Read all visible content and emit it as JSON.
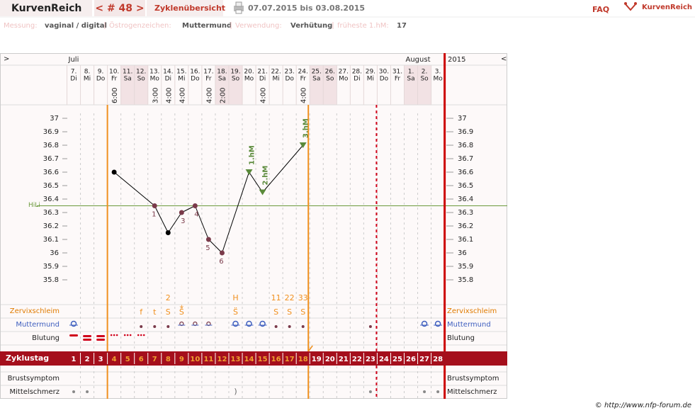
{
  "header": {
    "brand": "KurvenReich",
    "cycle_nav": "< # 48 >",
    "overview": "Zyklenübersicht",
    "date_range": "07.07.2015 bis 03.08.2015",
    "faq": "FAQ",
    "logo_text": "KurvenReich"
  },
  "info": [
    {
      "label": "Messung:",
      "value": "vaginal / digital"
    },
    {
      "label": "Östrogenzeichen:",
      "value": "Muttermund"
    },
    {
      "label": "Verwendung:",
      "value": "Verhütung"
    },
    {
      "label": "früheste 1.hM:",
      "value": 17
    }
  ],
  "nav": {
    "prev": ">",
    "next": "<"
  },
  "chart_data": {
    "type": "line",
    "months": [
      {
        "index": 0,
        "label": "Juli"
      },
      {
        "index": 25,
        "label": "August"
      }
    ],
    "year": 2015,
    "categories": [
      "7.",
      "8.",
      "9.",
      "10.",
      "11.",
      "12.",
      "13.",
      "14.",
      "15.",
      "16.",
      "17.",
      "18.",
      "19.",
      "20.",
      "21.",
      "22.",
      "23.",
      "24.",
      "25.",
      "26.",
      "27.",
      "28.",
      "29.",
      "30.",
      "31.",
      "1.",
      "2.",
      "3."
    ],
    "weekdays": [
      "Di",
      "Mi",
      "Do",
      "Fr",
      "Sa",
      "So",
      "Mo",
      "Di",
      "Mi",
      "Do",
      "Fr",
      "Sa",
      "So",
      "Mo",
      "Di",
      "Mi",
      "Do",
      "Fr",
      "Sa",
      "So",
      "Mo",
      "Di",
      "Mi",
      "Do",
      "Fr",
      "Sa",
      "So",
      "Mo"
    ],
    "shaded": [
      false,
      false,
      false,
      false,
      true,
      true,
      false,
      false,
      false,
      false,
      false,
      true,
      true,
      false,
      false,
      false,
      false,
      false,
      true,
      true,
      false,
      false,
      false,
      false,
      false,
      true,
      true,
      false
    ],
    "times": [
      null,
      null,
      null,
      "6:00",
      null,
      null,
      "3:00",
      "4:00",
      "4:00",
      null,
      "4:00",
      "2:00",
      null,
      null,
      "4:00",
      null,
      null,
      "4:00",
      null,
      null,
      null,
      null,
      null,
      null,
      null,
      null,
      null,
      null
    ],
    "series": [
      {
        "name": "Temperatur",
        "color": "#000000",
        "values": [
          null,
          null,
          null,
          36.6,
          null,
          null,
          36.35,
          36.15,
          36.3,
          36.35,
          36.1,
          36.0,
          null,
          36.6,
          36.45,
          null,
          null,
          36.8,
          null,
          null,
          null,
          null,
          null,
          null,
          null,
          null,
          null,
          null
        ],
        "point_colors": [
          null,
          null,
          null,
          "#000000",
          null,
          null,
          "#7a3a4a",
          "#000000",
          "#7a3a4a",
          "#7a3a4a",
          "#7a3a4a",
          "#7a3a4a",
          null,
          "#5a8a3a",
          "#5a8a3a",
          null,
          null,
          "#5a8a3a",
          null,
          null,
          null,
          null,
          null,
          null,
          null,
          null,
          null,
          null
        ],
        "point_labels": [
          null,
          null,
          null,
          null,
          null,
          null,
          1,
          null,
          3,
          4,
          5,
          6,
          null,
          null,
          null,
          null,
          null,
          null,
          null,
          null,
          null,
          null,
          null,
          null,
          null,
          null,
          null,
          null
        ],
        "hm_labels": [
          null,
          null,
          null,
          null,
          null,
          null,
          null,
          null,
          null,
          null,
          null,
          null,
          null,
          "1.hM",
          "2.hM",
          null,
          null,
          "3.hM",
          null,
          null,
          null,
          null,
          null,
          null,
          null,
          null,
          null,
          null
        ]
      }
    ],
    "ylim": [
      35.7,
      37.1
    ],
    "yticks": [
      37,
      36.9,
      36.8,
      36.7,
      36.6,
      36.5,
      36.4,
      36.3,
      36.2,
      36.1,
      36,
      35.9,
      35.8
    ],
    "hili": {
      "label": "HiLi",
      "value": 36.35,
      "color": "#6b9a3c"
    },
    "symbols": [
      null,
      null,
      null,
      null,
      null,
      null,
      null,
      "2",
      null,
      null,
      null,
      null,
      "H",
      null,
      null,
      "11",
      "22",
      "33",
      null,
      null,
      null,
      null,
      null,
      null,
      null,
      null,
      null,
      null
    ],
    "mucus_marks": [
      null,
      null,
      null,
      null,
      null,
      null,
      null,
      null,
      "+",
      null,
      null,
      null,
      null,
      null,
      null,
      null,
      null,
      null,
      null,
      null,
      null,
      null,
      null,
      null,
      null,
      null,
      null,
      null
    ],
    "mucus": [
      null,
      null,
      null,
      null,
      null,
      "f",
      "t",
      "S",
      "S̈",
      null,
      null,
      null,
      "S̈",
      null,
      null,
      "S",
      "S",
      "S",
      null,
      null,
      null,
      null,
      null,
      null,
      null,
      null,
      null,
      null
    ],
    "rows": {
      "mucus": "Zervixschleim",
      "cervix": "Muttermund",
      "bleeding": "Blutung",
      "cycle_day": "Zyklustag",
      "breast": "Brustsymptom",
      "pain": "Mittelschmerz"
    },
    "cycle_days": [
      1,
      2,
      3,
      4,
      5,
      6,
      7,
      8,
      9,
      10,
      11,
      12,
      13,
      14,
      15,
      16,
      17,
      18,
      19,
      20,
      21,
      22,
      23,
      24,
      25,
      26,
      27,
      28
    ],
    "pain_marks": [
      null,
      null,
      null,
      null,
      null,
      null,
      null,
      null,
      null,
      null,
      null,
      null,
      ")",
      null,
      null,
      null,
      null,
      null,
      null,
      null,
      null,
      null,
      null,
      null,
      null,
      null,
      null,
      null
    ]
  },
  "footer": "© http://www.nfp-forum.de"
}
